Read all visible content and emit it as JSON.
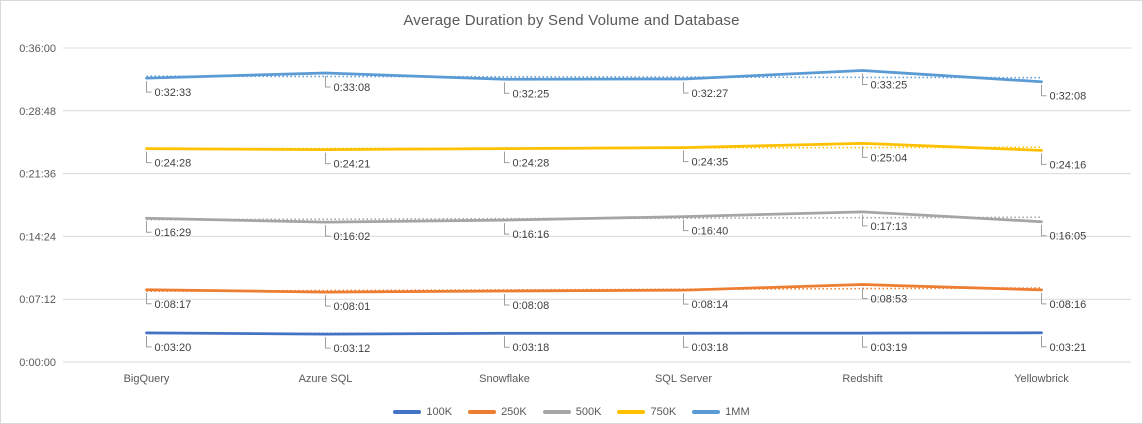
{
  "chart_data": {
    "type": "line",
    "title": "Average Duration by Send Volume and Database",
    "categories": [
      "BigQuery",
      "Azure SQL",
      "Snowflake",
      "SQL Server",
      "Redshift",
      "Yellowbrick"
    ],
    "y_ticks": [
      "0:00:00",
      "0:07:12",
      "0:14:24",
      "0:21:36",
      "0:28:48",
      "0:36:00"
    ],
    "ylim_seconds": [
      0,
      2160
    ],
    "grid": "horizontal",
    "legend_position": "bottom",
    "has_dotted_trendlines": true,
    "series": [
      {
        "name": "100K",
        "color": "#4472C4",
        "labels": [
          "0:03:20",
          "0:03:12",
          "0:03:18",
          "0:03:18",
          "0:03:19",
          "0:03:21"
        ],
        "values_seconds": [
          200,
          192,
          198,
          198,
          199,
          201
        ]
      },
      {
        "name": "250K",
        "color": "#ED7D31",
        "labels": [
          "0:08:17",
          "0:08:01",
          "0:08:08",
          "0:08:14",
          "0:08:53",
          "0:08:16"
        ],
        "values_seconds": [
          497,
          481,
          488,
          494,
          533,
          496
        ]
      },
      {
        "name": "500K",
        "color": "#A5A5A5",
        "labels": [
          "0:16:29",
          "0:16:02",
          "0:16:16",
          "0:16:40",
          "0:17:13",
          "0:16:05"
        ],
        "values_seconds": [
          989,
          962,
          976,
          1000,
          1033,
          965
        ]
      },
      {
        "name": "750K",
        "color": "#FFC000",
        "labels": [
          "0:24:28",
          "0:24:21",
          "0:24:28",
          "0:24:35",
          "0:25:04",
          "0:24:16"
        ],
        "values_seconds": [
          1468,
          1461,
          1468,
          1475,
          1504,
          1456
        ]
      },
      {
        "name": "1MM",
        "color": "#5B9BD5",
        "labels": [
          "0:32:33",
          "0:33:08",
          "0:32:25",
          "0:32:27",
          "0:33:25",
          "0:32:08"
        ],
        "values_seconds": [
          1953,
          1988,
          1945,
          1947,
          2005,
          1928
        ]
      }
    ],
    "colors": {
      "grid": "#D9D9D9",
      "border": "#D9D9D9",
      "axis_text": "#595959",
      "data_label_text": "#404040",
      "leader_line": "#9E9E9E",
      "title_text": "#595959",
      "background": "#FFFFFF"
    }
  }
}
